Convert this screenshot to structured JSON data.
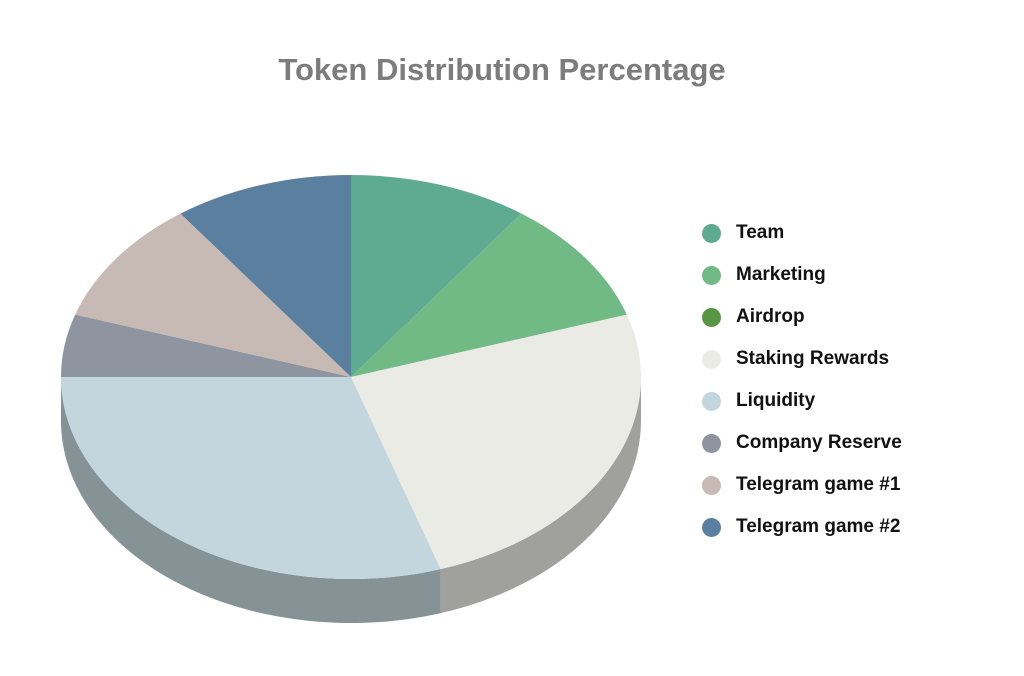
{
  "chart_data": {
    "type": "pie",
    "title": "Token Distribution Percentage",
    "categories": [
      "Team",
      "Marketing",
      "Airdrop",
      "Staking Rewards",
      "Liquidity",
      "Company Reserve",
      "Telegram game #1",
      "Telegram game #2"
    ],
    "values": [
      10,
      10,
      0,
      25,
      30,
      5,
      10,
      10
    ],
    "unit": "%",
    "colors": [
      "#5fab92",
      "#72ba85",
      "#5a9546",
      "#ebebe6",
      "#c3d6dd",
      "#8e95a0",
      "#c7b9b3",
      "#5b7f9f"
    ],
    "style": "3d",
    "legend_position": "right"
  }
}
